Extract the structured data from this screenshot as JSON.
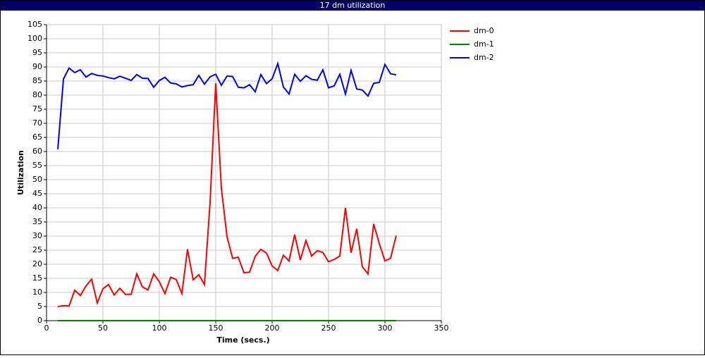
{
  "chart_data": {
    "type": "line",
    "title": "17 dm utilization",
    "xlabel": "Time (secs.)",
    "ylabel": "Utilization",
    "x": [
      10,
      15,
      20,
      25,
      30,
      35,
      40,
      45,
      50,
      55,
      60,
      65,
      70,
      75,
      80,
      85,
      90,
      95,
      100,
      105,
      110,
      115,
      120,
      125,
      130,
      135,
      140,
      145,
      150,
      155,
      160,
      165,
      170,
      175,
      180,
      185,
      190,
      195,
      200,
      205,
      210,
      215,
      220,
      225,
      230,
      235,
      240,
      245,
      250,
      255,
      260,
      265,
      270,
      275,
      280,
      285,
      290,
      295,
      300,
      305,
      310
    ],
    "series": [
      {
        "name": "dm-0",
        "color": "#ff0000",
        "values": [
          5,
          5.3,
          5.2,
          10.8,
          8.9,
          12.3,
          14.7,
          6.3,
          11.3,
          12.8,
          9.1,
          11.5,
          9.3,
          9.3,
          16.6,
          12,
          10.9,
          16.6,
          13.8,
          9.6,
          15.4,
          14.6,
          9.6,
          25.3,
          14.5,
          16.3,
          12.8,
          42,
          84.2,
          47,
          29.8,
          22.1,
          22.5,
          17,
          17.2,
          22.8,
          25.3,
          24,
          19.4,
          17.8,
          23.2,
          21.2,
          30.5,
          21.5,
          28.4,
          22.9,
          24.8,
          24.2,
          20.9,
          21.7,
          22.9,
          40,
          24.1,
          32.6,
          19.1,
          16.6,
          34.3,
          27.4,
          21.2,
          22.1,
          30.2
        ]
      },
      {
        "name": "dm-1",
        "color": "#008000",
        "values": [
          0,
          0,
          0,
          0,
          0,
          0,
          0,
          0,
          0,
          0,
          0,
          0,
          0,
          0,
          0,
          0,
          0,
          0,
          0,
          0,
          0,
          0,
          0,
          0,
          0,
          0,
          0,
          0,
          0,
          0,
          0,
          0,
          0,
          0,
          0,
          0,
          0,
          0,
          0,
          0,
          0,
          0,
          0,
          0,
          0,
          0,
          0,
          0,
          0,
          0,
          0,
          0,
          0,
          0,
          0,
          0,
          0,
          0,
          0,
          0,
          0
        ]
      },
      {
        "name": "dm-2",
        "color": "#0000ff",
        "values": [
          60.8,
          85.7,
          89.6,
          88,
          89,
          86.4,
          87.7,
          87,
          86.8,
          86.2,
          85.8,
          86.7,
          86,
          85.2,
          87.3,
          86,
          85.9,
          82.8,
          85.2,
          86.3,
          84.3,
          84,
          82.9,
          83.4,
          83.7,
          87,
          83.9,
          86.5,
          87.4,
          83.5,
          86.8,
          86.6,
          82.8,
          82.6,
          83.7,
          81.2,
          87.3,
          84.1,
          85.8,
          91.2,
          82.9,
          80.4,
          87.4,
          84.9,
          86.9,
          85.6,
          85.3,
          89,
          82.6,
          83.3,
          87.4,
          80.4,
          88.8,
          82.2,
          81.8,
          79.7,
          84.2,
          84.5,
          90.9,
          87.6,
          87.2
        ]
      }
    ],
    "xlim": [
      0,
      350
    ],
    "xticks": [
      0,
      50,
      100,
      150,
      200,
      250,
      300,
      350
    ],
    "ylim": [
      0,
      105
    ],
    "yticks": [
      0,
      5,
      10,
      15,
      20,
      25,
      30,
      35,
      40,
      45,
      50,
      55,
      60,
      65,
      70,
      75,
      80,
      85,
      90,
      95,
      100,
      105
    ],
    "grid": true,
    "legend": "right"
  }
}
